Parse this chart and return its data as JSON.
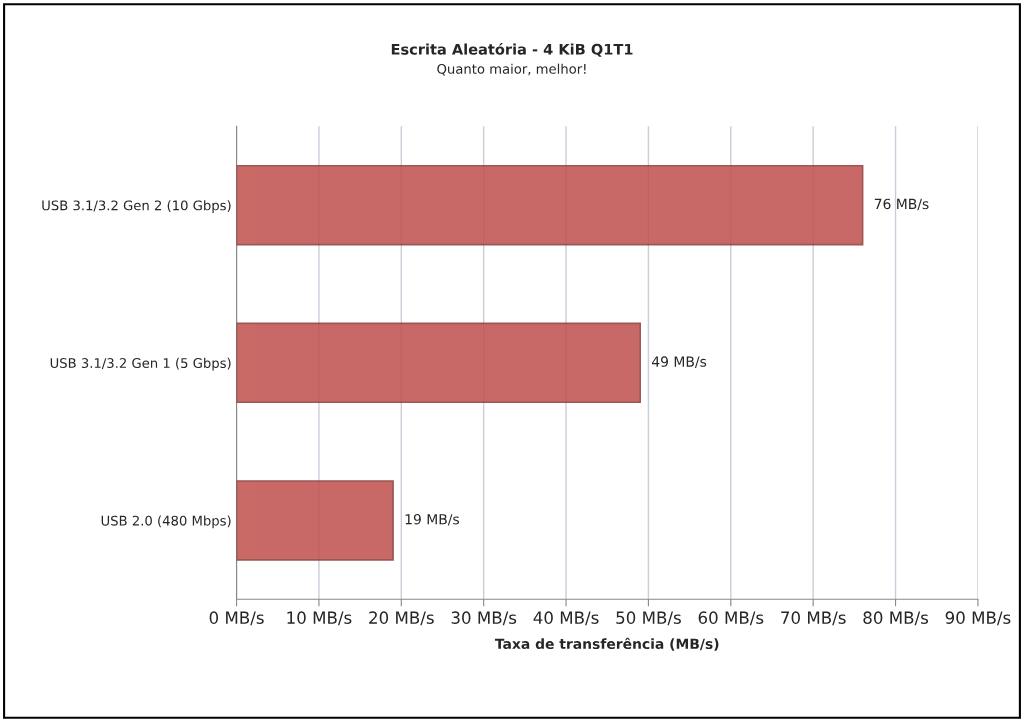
{
  "chart_data": {
    "type": "bar",
    "orientation": "horizontal",
    "subtitle": "Escrita Aleatória - 4 KiB Q1T1",
    "annotations": [
      "Quanto maior, melhor!"
    ],
    "xlabel": "Taxa de transferência (MB/s)",
    "categories": [
      "USB 3.1/3.2 Gen 2 (10 Gbps)",
      "USB 3.1/3.2 Gen 1 (5 Gbps)",
      "USB 2.0 (480 Mbps)"
    ],
    "values": [
      76,
      49,
      19
    ],
    "value_labels": [
      "76 MB/s",
      "49 MB/s",
      "19 MB/s"
    ],
    "color": "#c0504d",
    "xlim": [
      0,
      90
    ],
    "xticks": [
      {
        "value": 0,
        "label": "0 MB/s"
      },
      {
        "value": 10,
        "label": "10 MB/s"
      },
      {
        "value": 20,
        "label": "20 MB/s"
      },
      {
        "value": 30,
        "label": "30 MB/s"
      },
      {
        "value": 40,
        "label": "40 MB/s"
      },
      {
        "value": 50,
        "label": "50 MB/s"
      },
      {
        "value": 60,
        "label": "60 MB/s"
      },
      {
        "value": 70,
        "label": "70 MB/s"
      },
      {
        "value": 80,
        "label": "80 MB/s"
      },
      {
        "value": 90,
        "label": "90 MB/s"
      }
    ],
    "grid": "x",
    "legend": false
  }
}
